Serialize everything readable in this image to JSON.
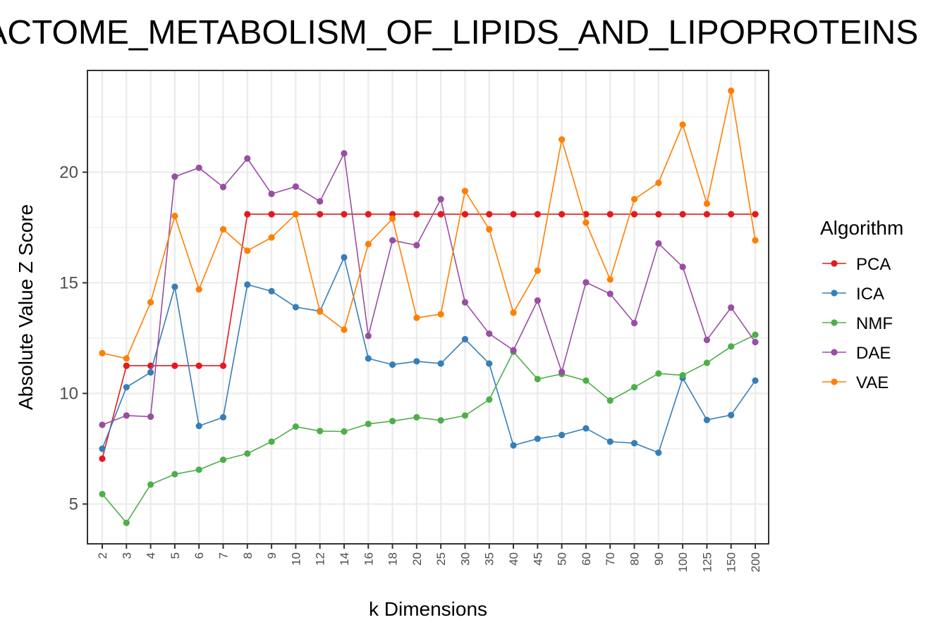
{
  "chart_data": {
    "type": "line",
    "title": "REACTOME_METABOLISM_OF_LIPIDS_AND_LIPOPROTEINS",
    "xlabel": "k Dimensions",
    "ylabel": "Absolute Value Z Score",
    "categories": [
      "2",
      "3",
      "4",
      "5",
      "6",
      "7",
      "8",
      "9",
      "10",
      "12",
      "14",
      "16",
      "18",
      "20",
      "25",
      "30",
      "35",
      "40",
      "45",
      "50",
      "60",
      "70",
      "80",
      "90",
      "100",
      "125",
      "150",
      "200"
    ],
    "ylim": [
      3.2,
      24.6
    ],
    "yticks": [
      5,
      10,
      15,
      20
    ],
    "grid": true,
    "legend_title": "Algorithm",
    "legend_position": "right",
    "series": [
      {
        "name": "PCA",
        "color": "#e41a1c",
        "values": [
          7.05,
          11.25,
          11.25,
          11.25,
          11.25,
          11.25,
          18.1,
          18.1,
          18.1,
          18.1,
          18.1,
          18.1,
          18.1,
          18.1,
          18.1,
          18.1,
          18.1,
          18.1,
          18.1,
          18.1,
          18.1,
          18.1,
          18.1,
          18.1,
          18.1,
          18.1,
          18.1,
          18.1
        ]
      },
      {
        "name": "ICA",
        "color": "#377eb8",
        "values": [
          7.5,
          10.28,
          10.95,
          14.82,
          8.53,
          8.92,
          14.92,
          14.62,
          13.9,
          13.72,
          16.15,
          11.58,
          11.3,
          11.45,
          11.35,
          12.45,
          11.35,
          7.65,
          7.95,
          8.12,
          8.42,
          7.82,
          7.75,
          7.32,
          10.7,
          8.8,
          9.02,
          10.58
        ]
      },
      {
        "name": "NMF",
        "color": "#4daf4a",
        "values": [
          5.45,
          4.15,
          5.88,
          6.35,
          6.55,
          7.0,
          7.28,
          7.82,
          8.5,
          8.3,
          8.28,
          8.62,
          8.75,
          8.92,
          8.78,
          9.0,
          9.72,
          11.88,
          10.65,
          10.88,
          10.58,
          9.68,
          10.28,
          10.9,
          10.82,
          11.38,
          12.12,
          12.65
        ]
      },
      {
        "name": "DAE",
        "color": "#984ea3",
        "values": [
          8.58,
          9.0,
          8.95,
          19.8,
          20.2,
          19.33,
          20.62,
          19.02,
          19.35,
          18.68,
          20.85,
          12.6,
          16.92,
          16.7,
          18.78,
          14.12,
          12.7,
          11.95,
          14.2,
          10.97,
          15.02,
          14.5,
          13.18,
          16.78,
          15.72,
          12.42,
          13.88,
          12.32
        ]
      },
      {
        "name": "VAE",
        "color": "#ff7f00",
        "values": [
          11.82,
          11.58,
          14.12,
          18.02,
          14.7,
          17.42,
          16.45,
          17.05,
          18.1,
          13.7,
          12.88,
          16.75,
          17.9,
          13.42,
          13.58,
          19.15,
          17.42,
          13.65,
          15.55,
          21.48,
          17.72,
          15.15,
          18.78,
          19.52,
          22.15,
          18.58,
          23.68,
          16.92
        ]
      }
    ]
  }
}
